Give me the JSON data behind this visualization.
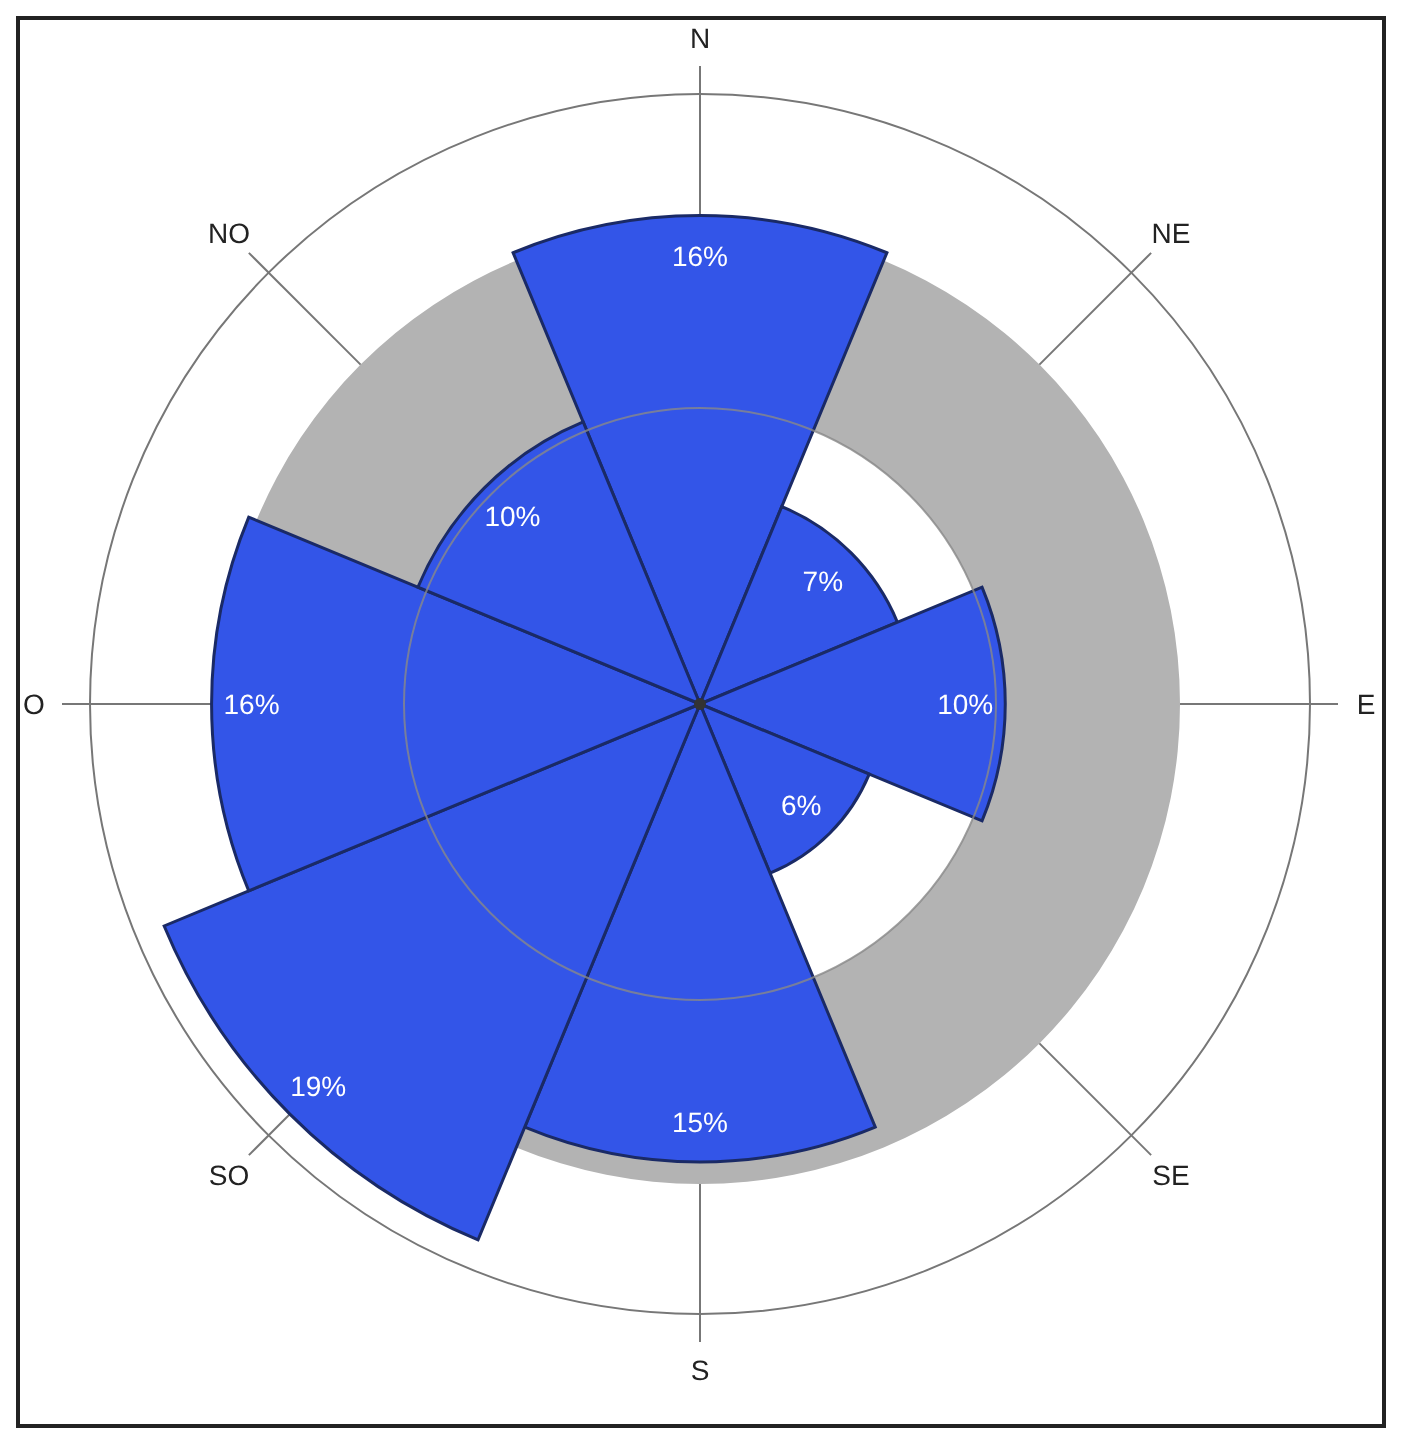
{
  "chart_data": {
    "type": "other",
    "categories": [
      "N",
      "NE",
      "E",
      "SE",
      "S",
      "SO",
      "O",
      "NO"
    ],
    "values": [
      16,
      7,
      10,
      6,
      15,
      19,
      16,
      10
    ],
    "value_labels": [
      "16%",
      "7%",
      "10%",
      "6%",
      "15%",
      "19%",
      "16%",
      "10%"
    ],
    "color": "#3355e8"
  }
}
